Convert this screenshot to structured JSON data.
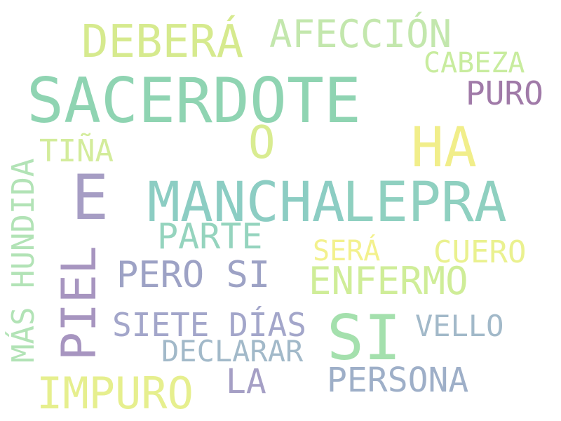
{
  "words": [
    {
      "text": "SACERDOTE",
      "color": "#8fd4b2"
    },
    {
      "text": "LEPRA",
      "color": "#8fd0c0"
    },
    {
      "text": "MANCHA",
      "color": "#8ccdc3"
    },
    {
      "text": "SI",
      "color": "#a4e0ad"
    },
    {
      "text": "E",
      "color": "#a69dc4"
    },
    {
      "text": "PIEL",
      "color": "#a795c0"
    },
    {
      "text": "HA",
      "color": "#f1ee8a"
    },
    {
      "text": "DEBERÁ",
      "color": "#d6ea8e"
    },
    {
      "text": "IMPURO",
      "color": "#e6ef8e"
    },
    {
      "text": "O",
      "color": "#d9ec91"
    },
    {
      "text": "AFECCIÓN",
      "color": "#c3e7ad"
    },
    {
      "text": "ENFERMO",
      "color": "#cfed98"
    },
    {
      "text": "PERO SI",
      "color": "#9da2c5"
    },
    {
      "text": "SIETE DÍAS",
      "color": "#a3a6ca"
    },
    {
      "text": "PERSONA",
      "color": "#9eafc8"
    },
    {
      "text": "MÁS HUNDIDA",
      "color": "#b2e3b6"
    },
    {
      "text": "PARTE",
      "color": "#95d4be"
    },
    {
      "text": "LA",
      "color": "#a59fc5"
    },
    {
      "text": "PURO",
      "color": "#a07aa8"
    },
    {
      "text": "CABEZA",
      "color": "#c8ec9e"
    },
    {
      "text": "CUERO",
      "color": "#eaf18f"
    },
    {
      "text": "DECLARAR",
      "color": "#a2b9c9"
    },
    {
      "text": "VELLO",
      "color": "#a2b9c9"
    },
    {
      "text": "TIÑA",
      "color": "#d3ec9b"
    },
    {
      "text": "SERÁ",
      "color": "#f3f18d"
    }
  ]
}
